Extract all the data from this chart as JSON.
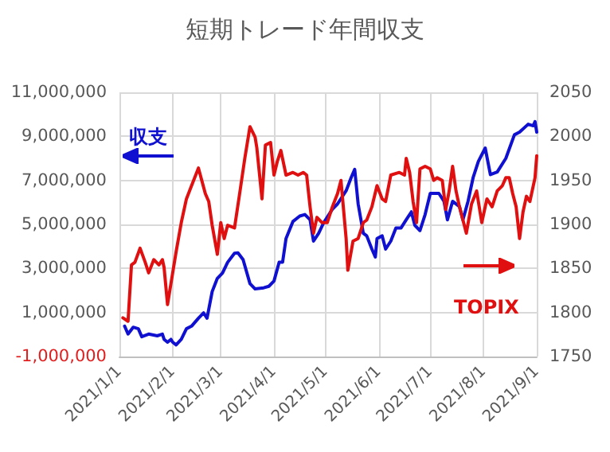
{
  "chart_data": {
    "type": "line",
    "title": "短期トレード年間収支",
    "grid": true,
    "legend": false,
    "marker": "none",
    "line_style": "solid",
    "xlim": [
      "2021-01-01",
      "2021-09-01"
    ],
    "xticks": [
      {
        "value": "2021-01-01",
        "label": "2021/1/1"
      },
      {
        "value": "2021-02-01",
        "label": "2021/2/1"
      },
      {
        "value": "2021-03-01",
        "label": "2021/3/1"
      },
      {
        "value": "2021-04-01",
        "label": "2021/4/1"
      },
      {
        "value": "2021-05-01",
        "label": "2021/5/1"
      },
      {
        "value": "2021-06-01",
        "label": "2021/6/1"
      },
      {
        "value": "2021-07-01",
        "label": "2021/7/1"
      },
      {
        "value": "2021-08-01",
        "label": "2021/8/1"
      },
      {
        "value": "2021-09-01",
        "label": "2021/9/1"
      }
    ],
    "ylim": [
      -1000000,
      11000000
    ],
    "yticks": [
      {
        "value": -1000000,
        "label": "-1,000,000"
      },
      {
        "value": 1000000,
        "label": "1,000,000"
      },
      {
        "value": 3000000,
        "label": "3,000,000"
      },
      {
        "value": 5000000,
        "label": "5,000,000"
      },
      {
        "value": 7000000,
        "label": "7,000,000"
      },
      {
        "value": 9000000,
        "label": "9,000,000"
      },
      {
        "value": 11000000,
        "label": "11,000,000"
      }
    ],
    "y2lim": [
      1750,
      2050
    ],
    "y2ticks": [
      1750,
      1800,
      1850,
      1900,
      1950,
      2000,
      2050
    ],
    "series": [
      {
        "name": "収支",
        "color": "#1010d0",
        "x": [
          "2021-01-04",
          "2021-01-06",
          "2021-01-09",
          "2021-01-12",
          "2021-01-14",
          "2021-01-18",
          "2021-01-23",
          "2021-01-26",
          "2021-01-27",
          "2021-01-29",
          "2021-01-31",
          "2021-02-01",
          "2021-02-03",
          "2021-02-06",
          "2021-02-09",
          "2021-02-12",
          "2021-02-16",
          "2021-02-19",
          "2021-02-21",
          "2021-02-24",
          "2021-02-27",
          "2021-03-02",
          "2021-03-05",
          "2021-03-09",
          "2021-03-11",
          "2021-03-14",
          "2021-03-18",
          "2021-03-21",
          "2021-03-26",
          "2021-03-29",
          "2021-04-01",
          "2021-04-04",
          "2021-04-06",
          "2021-04-08",
          "2021-04-12",
          "2021-04-16",
          "2021-04-19",
          "2021-04-22",
          "2021-04-24",
          "2021-04-27",
          "2021-04-30",
          "2021-05-05",
          "2021-05-08",
          "2021-05-13",
          "2021-05-16",
          "2021-05-18",
          "2021-05-20",
          "2021-05-23",
          "2021-05-25",
          "2021-05-28",
          "2021-05-30",
          "2021-05-31",
          "2021-06-03",
          "2021-06-05",
          "2021-06-08",
          "2021-06-11",
          "2021-06-14",
          "2021-06-17",
          "2021-06-20",
          "2021-06-22",
          "2021-06-25",
          "2021-06-28",
          "2021-07-01",
          "2021-07-06",
          "2021-07-09",
          "2021-07-11",
          "2021-07-14",
          "2021-07-18",
          "2021-07-20",
          "2021-07-23",
          "2021-07-26",
          "2021-07-29",
          "2021-08-02",
          "2021-08-05",
          "2021-08-09",
          "2021-08-14",
          "2021-08-19",
          "2021-08-22",
          "2021-08-27",
          "2021-08-30",
          "2021-08-31",
          "2021-09-01"
        ],
        "values": [
          380000,
          20000,
          330000,
          260000,
          -100000,
          20000,
          -60000,
          20000,
          -220000,
          -350000,
          -220000,
          -350000,
          -470000,
          -220000,
          260000,
          380000,
          740000,
          980000,
          740000,
          1950000,
          2550000,
          2790000,
          3280000,
          3690000,
          3710000,
          3400000,
          2310000,
          2070000,
          2120000,
          2190000,
          2430000,
          3280000,
          3280000,
          4360000,
          5130000,
          5380000,
          5450000,
          5210000,
          4240000,
          4600000,
          5090000,
          5690000,
          5930000,
          6530000,
          7140000,
          7500000,
          5930000,
          4600000,
          4480000,
          3880000,
          3520000,
          4360000,
          4480000,
          3880000,
          4240000,
          4840000,
          4840000,
          5210000,
          5570000,
          4960000,
          4720000,
          5450000,
          6410000,
          6410000,
          6050000,
          5210000,
          6050000,
          5810000,
          5210000,
          6050000,
          7140000,
          7860000,
          8470000,
          7260000,
          7380000,
          8000000,
          9070000,
          9190000,
          9550000,
          9480000,
          9670000,
          9190000
        ]
      },
      {
        "name": "TOPIX",
        "color": "#e01010",
        "axis": "y2",
        "x": [
          "2021-01-03",
          "2021-01-06",
          "2021-01-08",
          "2021-01-10",
          "2021-01-13",
          "2021-01-16",
          "2021-01-18",
          "2021-01-21",
          "2021-01-24",
          "2021-01-26",
          "2021-01-27",
          "2021-01-29",
          "2021-02-03",
          "2021-02-06",
          "2021-02-09",
          "2021-02-12",
          "2021-02-16",
          "2021-02-20",
          "2021-02-22",
          "2021-02-24",
          "2021-02-27",
          "2021-03-01",
          "2021-03-03",
          "2021-03-05",
          "2021-03-09",
          "2021-03-12",
          "2021-03-15",
          "2021-03-18",
          "2021-03-21",
          "2021-03-22",
          "2021-03-25",
          "2021-03-27",
          "2021-03-30",
          "2021-04-01",
          "2021-04-03",
          "2021-04-05",
          "2021-04-08",
          "2021-04-12",
          "2021-04-15",
          "2021-04-18",
          "2021-04-20",
          "2021-04-22",
          "2021-04-24",
          "2021-04-26",
          "2021-04-29",
          "2021-05-02",
          "2021-05-05",
          "2021-05-08",
          "2021-05-10",
          "2021-05-13",
          "2021-05-14",
          "2021-05-17",
          "2021-05-20",
          "2021-05-23",
          "2021-05-25",
          "2021-05-28",
          "2021-05-31",
          "2021-06-03",
          "2021-06-05",
          "2021-06-08",
          "2021-06-13",
          "2021-06-16",
          "2021-06-17",
          "2021-06-19",
          "2021-06-21",
          "2021-06-23",
          "2021-06-25",
          "2021-06-28",
          "2021-07-01",
          "2021-07-03",
          "2021-07-05",
          "2021-07-08",
          "2021-07-10",
          "2021-07-12",
          "2021-07-14",
          "2021-07-16",
          "2021-07-18",
          "2021-07-22",
          "2021-07-25",
          "2021-07-28",
          "2021-07-31",
          "2021-08-03",
          "2021-08-06",
          "2021-08-09",
          "2021-08-12",
          "2021-08-14",
          "2021-08-16",
          "2021-08-18",
          "2021-08-20",
          "2021-08-22",
          "2021-08-24",
          "2021-08-26",
          "2021-08-28",
          "2021-08-31",
          "2021-09-01"
        ],
        "values": [
          1794,
          1790,
          1854,
          1857,
          1873,
          1857,
          1845,
          1860,
          1854,
          1860,
          1851,
          1809,
          1869,
          1902,
          1929,
          1944,
          1964,
          1935,
          1926,
          1899,
          1866,
          1902,
          1884,
          1899,
          1896,
          1935,
          1975,
          2011,
          1999,
          1987,
          1929,
          1990,
          1993,
          1956,
          1972,
          1984,
          1956,
          1959,
          1956,
          1959,
          1956,
          1920,
          1890,
          1908,
          1902,
          1902,
          1920,
          1935,
          1950,
          1884,
          1848,
          1881,
          1884,
          1902,
          1905,
          1920,
          1944,
          1929,
          1926,
          1956,
          1959,
          1956,
          1975,
          1959,
          1926,
          1902,
          1963,
          1966,
          1963,
          1950,
          1953,
          1950,
          1917,
          1938,
          1966,
          1938,
          1920,
          1890,
          1923,
          1938,
          1902,
          1929,
          1920,
          1938,
          1944,
          1953,
          1953,
          1935,
          1920,
          1884,
          1914,
          1932,
          1926,
          1953,
          1978
        ]
      }
    ]
  }
}
